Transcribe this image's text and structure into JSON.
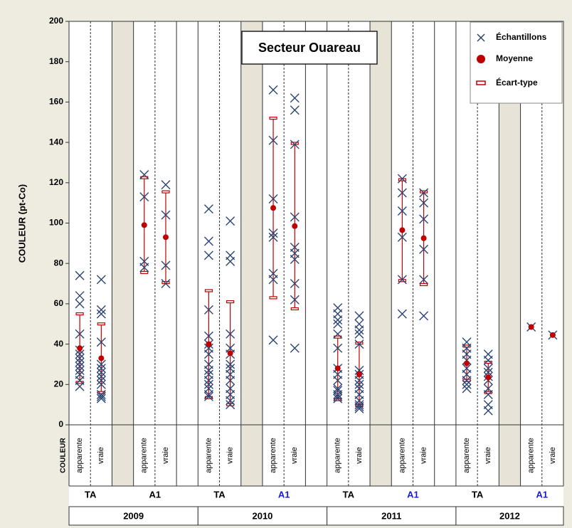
{
  "chart_data": {
    "type": "strip",
    "title": "Secteur Ouareau",
    "y_label": "COULEUR (pt-Co)",
    "row_label": "COULEUR",
    "ylim": [
      0,
      200
    ],
    "yticks": [
      0,
      20,
      40,
      60,
      80,
      100,
      120,
      140,
      160,
      180,
      200
    ],
    "legend": {
      "samples": "Échantillons",
      "mean": "Moyenne",
      "sd": "Écart-type"
    },
    "colors": {
      "samples": "#2b4573",
      "mean": "#c00000",
      "sd": "#c00000"
    },
    "groups": [
      {
        "year": "2009",
        "subgroups": [
          {
            "name": "TA",
            "label_color": "#000000",
            "columns": [
              {
                "label": "apparente",
                "samples": [
                  74,
                  64,
                  60,
                  45,
                  37,
                  35,
                  33,
                  31,
                  29,
                  27,
                  25,
                  22,
                  19
                ],
                "mean": 38,
                "sd": 17
              },
              {
                "label": "vraie",
                "samples": [
                  72,
                  57,
                  55,
                  41,
                  30,
                  28,
                  26,
                  24,
                  22,
                  20,
                  15,
                  14,
                  13
                ],
                "mean": 33,
                "sd": 17
              }
            ]
          },
          {
            "name": "A1",
            "label_color": "#000000",
            "columns": [
              {
                "label": "apparente",
                "samples": [
                  124,
                  113,
                  81,
                  78
                ],
                "mean": 99,
                "sd": 23.5
              },
              {
                "label": "vraie",
                "samples": [
                  119,
                  104,
                  79,
                  70
                ],
                "mean": 93,
                "sd": 22.5
              }
            ]
          }
        ]
      },
      {
        "year": "2010",
        "subgroups": [
          {
            "name": "TA",
            "label_color": "#000000",
            "columns": [
              {
                "label": "apparente",
                "samples": [
                  107,
                  91,
                  84,
                  57,
                  44,
                  40,
                  38,
                  35,
                  30,
                  27,
                  25,
                  22,
                  20,
                  18,
                  15,
                  14
                ],
                "mean": 40,
                "sd": 26.5
              },
              {
                "label": "vraie",
                "samples": [
                  101,
                  84,
                  81,
                  45,
                  38,
                  35,
                  30,
                  28,
                  25,
                  22,
                  18,
                  15,
                  12,
                  10
                ],
                "mean": 35.5,
                "sd": 25.5
              }
            ]
          },
          {
            "name": "A1",
            "label_color": "#1a1ad0",
            "columns": [
              {
                "label": "apparente",
                "samples": [
                  166,
                  141,
                  112,
                  95,
                  93,
                  75,
                  72,
                  42
                ],
                "mean": 107.5,
                "sd": 44.5
              },
              {
                "label": "vraie",
                "samples": [
                  162,
                  156,
                  139,
                  103,
                  88,
                  85,
                  82,
                  70,
                  62,
                  38
                ],
                "mean": 98.5,
                "sd": 41
              }
            ]
          }
        ]
      },
      {
        "year": "2011",
        "subgroups": [
          {
            "name": "TA",
            "label_color": "#000000",
            "columns": [
              {
                "label": "apparente",
                "samples": [
                  58,
                  55,
                  52,
                  50,
                  45,
                  38,
                  28,
                  25,
                  22,
                  18,
                  17,
                  15,
                  14,
                  13
                ],
                "mean": 28,
                "sd": 15.5
              },
              {
                "label": "vraie",
                "samples": [
                  54,
                  50,
                  47,
                  45,
                  40,
                  27,
                  25,
                  22,
                  20,
                  18,
                  15,
                  12,
                  10,
                  9,
                  8
                ],
                "mean": 25,
                "sd": 15.5
              }
            ]
          },
          {
            "name": "A1",
            "label_color": "#1a1ad0",
            "columns": [
              {
                "label": "apparente",
                "samples": [
                  122,
                  115,
                  106,
                  93,
                  72,
                  55
                ],
                "mean": 96.5,
                "sd": 25
              },
              {
                "label": "vraie",
                "samples": [
                  115,
                  110,
                  102,
                  87,
                  72,
                  54
                ],
                "mean": 92.5,
                "sd": 23
              }
            ]
          }
        ]
      },
      {
        "year": "2012",
        "subgroups": [
          {
            "name": "TA",
            "label_color": "#000000",
            "columns": [
              {
                "label": "apparente",
                "samples": [
                  41,
                  38,
                  35,
                  32,
                  28,
                  25,
                  22,
                  20,
                  18
                ],
                "mean": 30.5,
                "sd": 8.5
              },
              {
                "label": "vraie",
                "samples": [
                  35,
                  32,
                  28,
                  26,
                  24,
                  22,
                  18,
                  15,
                  10,
                  7
                ],
                "mean": 23.5,
                "sd": 7.5
              }
            ]
          },
          {
            "name": "A1",
            "label_color": "#1a1ad0",
            "columns": [
              {
                "label": "apparente",
                "samples": [
                  48.5
                ],
                "mean": 48.5,
                "sd": null
              },
              {
                "label": "vraie",
                "samples": [
                  44.5
                ],
                "mean": 44.5,
                "sd": null
              }
            ]
          }
        ]
      }
    ]
  }
}
